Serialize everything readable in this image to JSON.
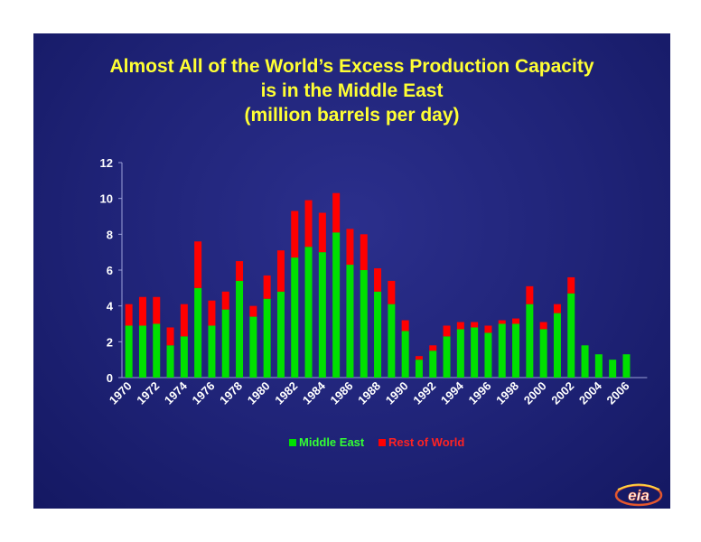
{
  "title_lines": [
    "Almost All of the World’s Excess Production Capacity",
    "is in the Middle East",
    "(million barrels per day)"
  ],
  "logo_text": "eia",
  "colors": {
    "middle_east": "#00e000",
    "rest_of_world": "#ff0000",
    "title": "#ffff33",
    "axis_text": "#ffffff",
    "legend_me_text": "#33ff33",
    "legend_row_text": "#ff2222"
  },
  "chart_data": {
    "type": "bar",
    "stacked": true,
    "title": "Almost All of the World’s Excess Production Capacity is in the Middle East (million barrels per day)",
    "xlabel": "",
    "ylabel": "",
    "ylim": [
      0,
      12
    ],
    "yticks": [
      0,
      2,
      4,
      6,
      8,
      10,
      12
    ],
    "grid": false,
    "legend_position": "bottom",
    "categories": [
      "1970",
      "1971",
      "1972",
      "1973",
      "1974",
      "1975",
      "1976",
      "1977",
      "1978",
      "1979",
      "1980",
      "1981",
      "1982",
      "1983",
      "1984",
      "1985",
      "1986",
      "1987",
      "1988",
      "1989",
      "1990",
      "1991",
      "1992",
      "1993",
      "1994",
      "1995",
      "1996",
      "1997",
      "1998",
      "1999",
      "2000",
      "2001",
      "2002",
      "2003",
      "2004",
      "2005",
      "2006",
      "2007"
    ],
    "xtick_labels": [
      "1970",
      "1972",
      "1974",
      "1976",
      "1978",
      "1980",
      "1982",
      "1984",
      "1986",
      "1988",
      "1990",
      "1992",
      "1994",
      "1996",
      "1998",
      "2000",
      "2002",
      "2004",
      "2006"
    ],
    "series": [
      {
        "name": "Middle East",
        "values": [
          2.9,
          2.9,
          3.0,
          1.8,
          2.3,
          5.0,
          2.9,
          3.8,
          5.4,
          3.4,
          4.4,
          4.8,
          6.7,
          7.3,
          7.0,
          8.1,
          6.3,
          6.0,
          4.8,
          4.1,
          2.6,
          1.0,
          1.5,
          2.3,
          2.7,
          2.8,
          2.5,
          3.0,
          3.0,
          4.1,
          2.7,
          3.6,
          4.7,
          1.8,
          1.3,
          1.0,
          1.3,
          0
        ]
      },
      {
        "name": "Rest of World",
        "values": [
          1.2,
          1.6,
          1.5,
          1.0,
          1.8,
          2.6,
          1.4,
          1.0,
          1.1,
          0.6,
          1.3,
          2.3,
          2.6,
          2.6,
          2.2,
          2.2,
          2.0,
          2.0,
          1.3,
          1.3,
          0.6,
          0.2,
          0.3,
          0.6,
          0.4,
          0.3,
          0.4,
          0.2,
          0.3,
          1.0,
          0.4,
          0.5,
          0.9,
          0,
          0,
          0,
          0,
          0
        ]
      }
    ]
  }
}
